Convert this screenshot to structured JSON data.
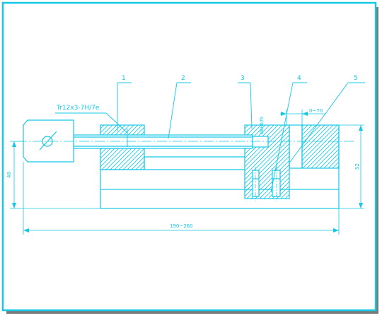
{
  "colors": {
    "line": "#14c8e6",
    "background": "#ffffff",
    "shadow": "#7a7a7a"
  },
  "callouts": [
    "1",
    "2",
    "3",
    "4",
    "5"
  ],
  "thread_label": "Tr12x3-7H/7e",
  "fit_label": "Ø8H9/f9",
  "gap_label": "0~70",
  "height_left": "48",
  "height_right": "52",
  "length_label": "190~260"
}
